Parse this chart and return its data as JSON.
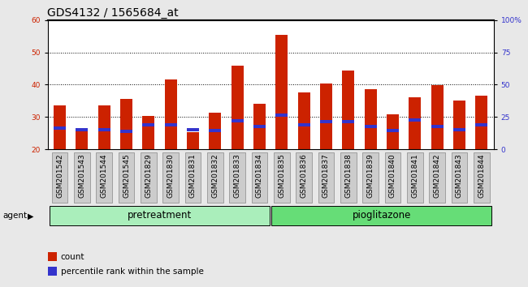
{
  "title": "GDS4132 / 1565684_at",
  "samples": [
    "GSM201542",
    "GSM201543",
    "GSM201544",
    "GSM201545",
    "GSM201829",
    "GSM201830",
    "GSM201831",
    "GSM201832",
    "GSM201833",
    "GSM201834",
    "GSM201835",
    "GSM201836",
    "GSM201837",
    "GSM201838",
    "GSM201839",
    "GSM201840",
    "GSM201841",
    "GSM201842",
    "GSM201843",
    "GSM201844"
  ],
  "red_values": [
    33.5,
    26.0,
    33.5,
    35.5,
    30.2,
    41.5,
    25.3,
    31.2,
    45.8,
    34.0,
    55.5,
    37.5,
    40.3,
    44.5,
    38.5,
    30.8,
    36.0,
    39.8,
    35.0,
    36.5
  ],
  "blue_values": [
    26.5,
    26.0,
    26.0,
    25.5,
    27.5,
    27.5,
    26.0,
    25.8,
    28.8,
    27.0,
    30.5,
    27.5,
    28.5,
    28.5,
    27.0,
    25.8,
    29.0,
    27.0,
    26.0,
    27.5
  ],
  "pretreatment_count": 10,
  "pioglitazone_count": 10,
  "group_labels": [
    "pretreatment",
    "pioglitazone"
  ],
  "group_colors": [
    "#aaeebb",
    "#66dd77"
  ],
  "ylim_left": [
    20,
    60
  ],
  "ylim_right": [
    0,
    100
  ],
  "yticks_left": [
    20,
    30,
    40,
    50,
    60
  ],
  "yticks_right": [
    0,
    25,
    50,
    75,
    100
  ],
  "ytick_labels_right": [
    "0",
    "25",
    "50",
    "75",
    "100%"
  ],
  "red_color": "#cc2200",
  "blue_color": "#3333cc",
  "bar_width": 0.55,
  "legend_red": "count",
  "legend_blue": "percentile rank within the sample",
  "agent_label": "agent",
  "background_color": "#e8e8e8",
  "plot_bg": "#ffffff",
  "title_fontsize": 10,
  "tick_fontsize": 6.5,
  "group_label_fontsize": 8.5,
  "legend_fontsize": 7.5,
  "sample_box_color": "#cccccc",
  "sample_box_edge": "#888888"
}
